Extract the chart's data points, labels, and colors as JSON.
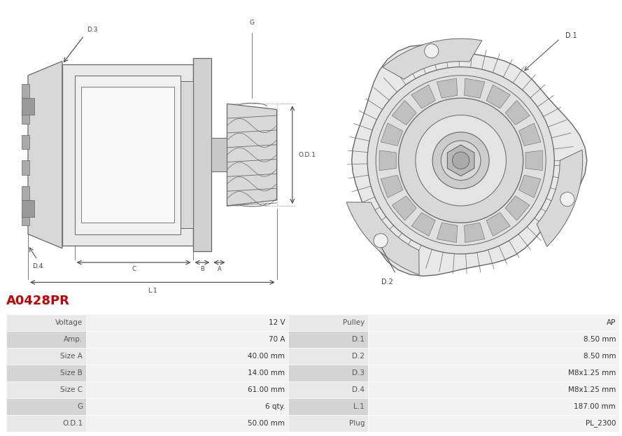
{
  "title": "A0428PR",
  "title_color": "#cc0000",
  "bg_color": "#ffffff",
  "table_headers_left": [
    "Voltage",
    "Amp.",
    "Size A",
    "Size B",
    "Size C",
    "G",
    "O.D.1"
  ],
  "table_values_left": [
    "12 V",
    "70 A",
    "40.00 mm",
    "14.00 mm",
    "61.00 mm",
    "6 qty.",
    "50.00 mm"
  ],
  "table_headers_right": [
    "Pulley",
    "D.1",
    "D.2",
    "D.3",
    "D.4",
    "L.1",
    "Plug"
  ],
  "table_values_right": [
    "AP",
    "8.50 mm",
    "8.50 mm",
    "M8x1.25 mm",
    "M8x1.25 mm",
    "187.00 mm",
    "PL_2300"
  ],
  "row_color_even": "#e8e8e8",
  "row_color_odd": "#d4d4d4",
  "cell_value_bg": "#f0f0f0",
  "border_color": "#ffffff",
  "label_color": "#555555",
  "value_color": "#333333",
  "line_color": "#666666",
  "dim_color": "#444444"
}
